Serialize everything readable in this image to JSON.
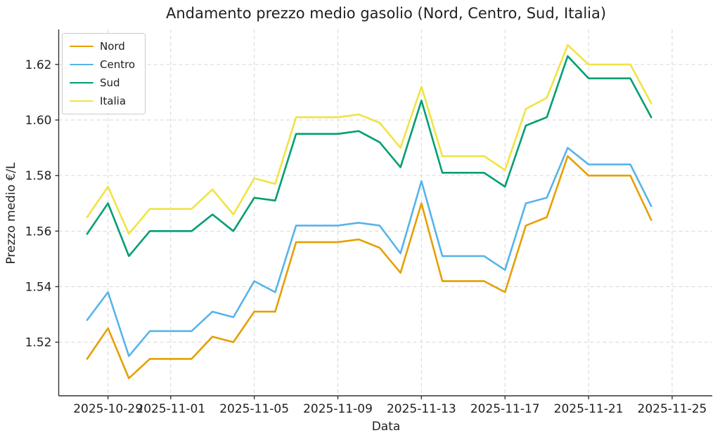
{
  "figure": {
    "title": "Andamento prezzo medio gasolio (Nord, Centro, Sud, Italia)",
    "background_color": "#ffffff",
    "text_color": "#1f1f1f"
  },
  "chart_data": {
    "type": "line",
    "title": "Andamento prezzo medio gasolio (Nord, Centro, Sud, Italia)",
    "xlabel": "Data",
    "ylabel": "Prezzo medio €/L",
    "grid": "on",
    "grid_style": "dashed",
    "grid_color": "#d6d6d6",
    "legend_position": "upper-left",
    "ylim": [
      1.5007,
      1.6326
    ],
    "xlim_days": [
      -1.36,
      29.92
    ],
    "x": [
      "2025-10-28",
      "2025-10-29",
      "2025-10-30",
      "2025-10-31",
      "2025-11-01",
      "2025-11-02",
      "2025-11-03",
      "2025-11-04",
      "2025-11-05",
      "2025-11-06",
      "2025-11-07",
      "2025-11-08",
      "2025-11-09",
      "2025-11-10",
      "2025-11-11",
      "2025-11-12",
      "2025-11-13",
      "2025-11-14",
      "2025-11-15",
      "2025-11-16",
      "2025-11-17",
      "2025-11-18",
      "2025-11-19",
      "2025-11-20",
      "2025-11-21",
      "2025-11-22",
      "2025-11-23",
      "2025-11-24"
    ],
    "x_tick_labels": [
      "2025-10-29",
      "2025-11-01",
      "2025-11-05",
      "2025-11-09",
      "2025-11-13",
      "2025-11-17",
      "2025-11-21",
      "2025-11-25"
    ],
    "x_tick_days": [
      1,
      4,
      8,
      12,
      16,
      20,
      24,
      28
    ],
    "y_tick_labels": [
      "1.52",
      "1.54",
      "1.56",
      "1.58",
      "1.60",
      "1.62"
    ],
    "y_tick_values": [
      1.52,
      1.54,
      1.56,
      1.58,
      1.6,
      1.62
    ],
    "series": [
      {
        "name": "Nord",
        "color": "#E69F00",
        "values": [
          1.514,
          1.525,
          1.507,
          1.514,
          1.514,
          1.514,
          1.522,
          1.52,
          1.531,
          1.531,
          1.556,
          1.556,
          1.556,
          1.557,
          1.554,
          1.545,
          1.57,
          1.542,
          1.542,
          1.542,
          1.538,
          1.562,
          1.565,
          1.587,
          1.58,
          1.58,
          1.58,
          1.564
        ]
      },
      {
        "name": "Centro",
        "color": "#56B4E9",
        "values": [
          1.528,
          1.538,
          1.515,
          1.524,
          1.524,
          1.524,
          1.531,
          1.529,
          1.542,
          1.538,
          1.562,
          1.562,
          1.562,
          1.563,
          1.562,
          1.552,
          1.578,
          1.551,
          1.551,
          1.551,
          1.546,
          1.57,
          1.572,
          1.59,
          1.584,
          1.584,
          1.584,
          1.569
        ]
      },
      {
        "name": "Sud",
        "color": "#009E73",
        "values": [
          1.559,
          1.57,
          1.551,
          1.56,
          1.56,
          1.56,
          1.566,
          1.56,
          1.572,
          1.571,
          1.595,
          1.595,
          1.595,
          1.596,
          1.592,
          1.583,
          1.607,
          1.581,
          1.581,
          1.581,
          1.576,
          1.598,
          1.601,
          1.623,
          1.615,
          1.615,
          1.615,
          1.601
        ]
      },
      {
        "name": "Italia",
        "color": "#F0E442",
        "values": [
          1.565,
          1.576,
          1.559,
          1.568,
          1.568,
          1.568,
          1.575,
          1.566,
          1.579,
          1.577,
          1.601,
          1.601,
          1.601,
          1.602,
          1.599,
          1.59,
          1.612,
          1.587,
          1.587,
          1.587,
          1.582,
          1.604,
          1.608,
          1.627,
          1.62,
          1.62,
          1.62,
          1.606
        ]
      }
    ]
  }
}
